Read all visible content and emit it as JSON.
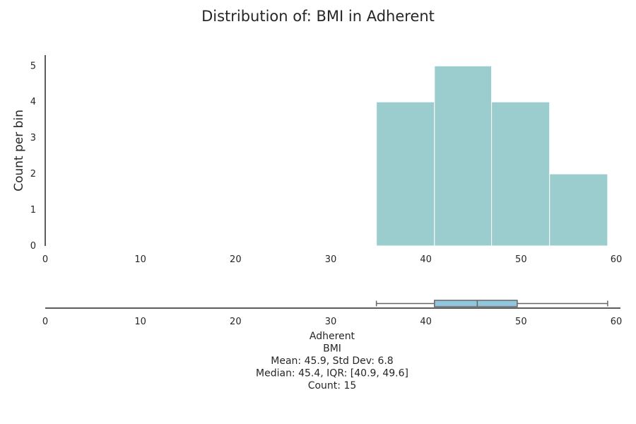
{
  "chart_data": {
    "type": "bar",
    "title": "Distribution of: BMI in Adherent",
    "ylabel": "Count per bin",
    "xlabel": "",
    "xlim": [
      0,
      60
    ],
    "ylim": [
      0,
      5.3
    ],
    "x_ticks": [
      "0",
      "10",
      "20",
      "30",
      "40",
      "50",
      "60"
    ],
    "y_ticks": [
      "0",
      "1",
      "2",
      "3",
      "4",
      "5"
    ],
    "bins": [
      {
        "start": 34.8,
        "end": 40.9,
        "count": 4
      },
      {
        "start": 40.9,
        "end": 46.9,
        "count": 5
      },
      {
        "start": 46.9,
        "end": 53.0,
        "count": 4
      },
      {
        "start": 53.0,
        "end": 59.1,
        "count": 2
      }
    ],
    "bar_color": "#9ccdce",
    "boxplot": {
      "min": 34.8,
      "q1": 40.9,
      "median": 45.4,
      "q3": 49.6,
      "max": 59.1,
      "box_color": "#92c6de",
      "line_color": "#666666"
    },
    "stats_lines": [
      "Adherent",
      "BMI",
      "Mean: 45.9, Std Dev: 6.8",
      "Median: 45.4, IQR: [40.9, 49.6]",
      "Count: 15"
    ],
    "grid": false,
    "legend": "none"
  }
}
